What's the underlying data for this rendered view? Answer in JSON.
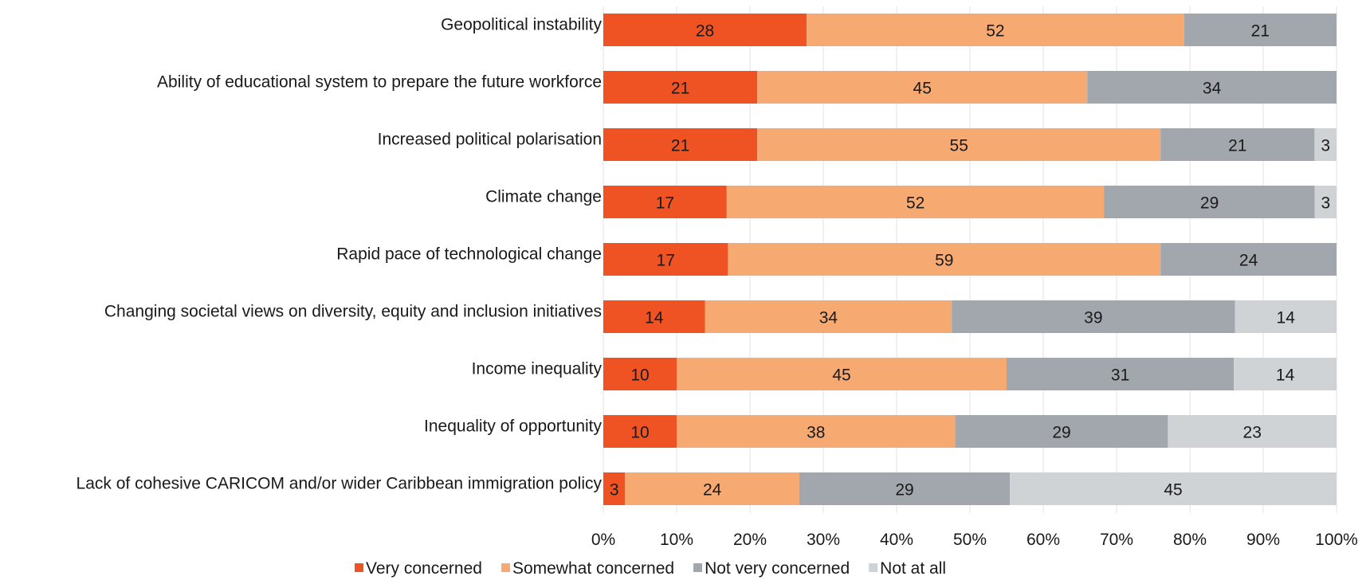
{
  "chart_data": {
    "type": "bar",
    "orientation": "horizontal",
    "stacked": "percent",
    "categories": [
      "Geopolitical instability",
      "Ability of educational system to prepare the future workforce",
      "Increased political polarisation",
      "Climate change",
      "Rapid pace of technological change",
      "Changing societal views on diversity, equity and inclusion initiatives",
      "Income inequality",
      "Inequality of opportunity",
      "Lack of cohesive CARICOM and/or wider Caribbean immigration policy"
    ],
    "series": [
      {
        "name": "Very concerned",
        "color": "#f05323",
        "values": [
          28,
          21,
          21,
          17,
          17,
          14,
          10,
          10,
          3
        ]
      },
      {
        "name": "Somewhat concerned",
        "color": "#f7a972",
        "values": [
          52,
          45,
          55,
          52,
          59,
          34,
          45,
          38,
          24
        ]
      },
      {
        "name": "Not very concerned",
        "color": "#a2a7ae",
        "values": [
          21,
          34,
          21,
          29,
          24,
          39,
          31,
          29,
          29
        ]
      },
      {
        "name": "Not at all",
        "color": "#d0d3d6",
        "values": [
          0,
          0,
          3,
          3,
          0,
          14,
          14,
          23,
          45
        ]
      }
    ],
    "xlim": [
      0,
      100
    ],
    "x_ticks": [
      "0%",
      "10%",
      "20%",
      "30%",
      "40%",
      "50%",
      "60%",
      "70%",
      "80%",
      "90%",
      "100%"
    ],
    "grid": true,
    "legend_position": "bottom",
    "title": "",
    "xlabel": "",
    "ylabel": ""
  }
}
